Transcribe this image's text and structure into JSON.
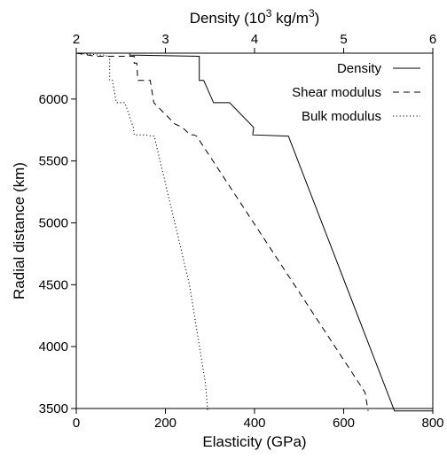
{
  "chart_data": {
    "type": "line",
    "ylabel": "Radial distance (km)",
    "xlabel_bottom": "Elasticity (GPa)",
    "xlabel_top_main": "Density (10",
    "xlabel_top_sup": "3",
    "xlabel_top_rest": " kg/m",
    "xlabel_top_sup2": "3",
    "xlabel_top_close": ")",
    "ylim": [
      3500,
      6371
    ],
    "yticks": [
      3500,
      4000,
      4500,
      5000,
      5500,
      6000
    ],
    "xlim_bottom": [
      0,
      800
    ],
    "xticks_bottom": [
      0,
      200,
      400,
      600,
      800
    ],
    "xlim_top": [
      2,
      6
    ],
    "xticks_top": [
      2,
      3,
      4,
      5,
      6
    ],
    "grid": false,
    "legend_position": "top-right",
    "series": [
      {
        "name": "Density",
        "axis": "top",
        "style": "solid",
        "x": [
          2.6,
          2.6,
          3.38,
          3.38,
          3.43,
          3.54,
          3.72,
          3.99,
          3.98,
          4.38,
          5.57,
          6.0
        ],
        "y": [
          6371,
          6356,
          6346,
          6151,
          6151,
          5971,
          5971,
          5771,
          5711,
          5701,
          3480,
          3480
        ]
      },
      {
        "name": "Shear modulus",
        "axis": "bottom",
        "style": "dashed",
        "x": [
          0,
          44,
          130,
          130,
          136,
          138,
          166,
          174,
          221,
          238,
          256,
          264,
          270,
          648,
          655
        ],
        "y": [
          6371,
          6346,
          6346,
          6291,
          6291,
          6151,
          6151,
          5971,
          5800,
          5771,
          5711,
          5711,
          5701,
          3630,
          3480
        ]
      },
      {
        "name": "Bulk modulus",
        "axis": "bottom",
        "style": "dotted",
        "x": [
          0,
          52,
          67,
          68,
          75,
          75,
          81,
          90,
          109,
          128,
          130,
          148,
          175,
          254,
          290,
          295
        ],
        "y": [
          6371,
          6356,
          6356,
          6346,
          6346,
          6151,
          6151,
          5971,
          5971,
          5771,
          5711,
          5711,
          5701,
          4500,
          3700,
          3480
        ]
      }
    ]
  }
}
